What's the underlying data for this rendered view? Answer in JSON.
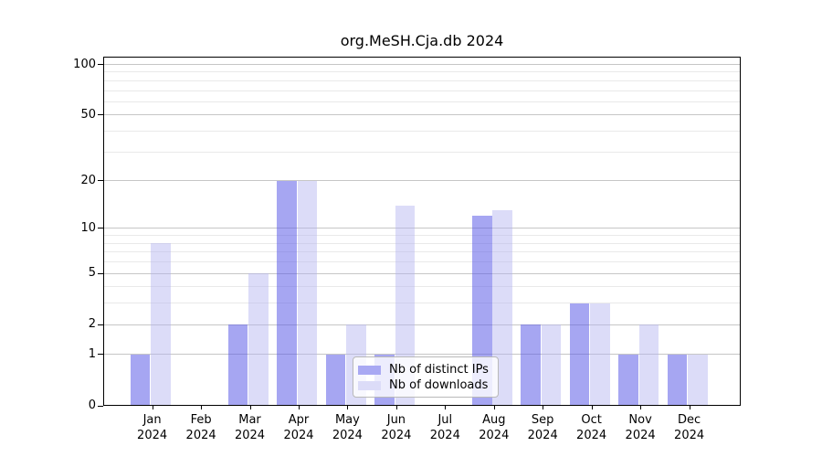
{
  "title": "org.MeSH.Cja.db 2024",
  "legend": {
    "items": [
      {
        "label": "Nb of distinct IPs",
        "series_key": "ips"
      },
      {
        "label": "Nb of downloads",
        "series_key": "downloads"
      }
    ]
  },
  "colors": {
    "bar_ips": "rgba(93,93,231,0.55)",
    "bar_downloads": "rgba(177,177,239,0.45)",
    "legend_swatch_ips": "#a9a9f3",
    "legend_swatch_downloads": "#dcdcf8",
    "grid_major": "#c6c6c6",
    "grid_minor": "#e9e9e9",
    "axis": "#000000",
    "text": "#000000"
  },
  "axes": {
    "year": "2024",
    "months": [
      "Jan",
      "Feb",
      "Mar",
      "Apr",
      "May",
      "Jun",
      "Jul",
      "Aug",
      "Sep",
      "Oct",
      "Nov",
      "Dec"
    ],
    "ytick_values": [
      0,
      1,
      2,
      5,
      10,
      20,
      50,
      100
    ],
    "minor_grid_values": [
      3,
      4,
      6,
      7,
      8,
      9,
      30,
      40,
      60,
      70,
      80,
      90
    ]
  },
  "chart_data": {
    "type": "bar",
    "title": "org.MeSH.Cja.db 2024",
    "categories": [
      "Jan 2024",
      "Feb 2024",
      "Mar 2024",
      "Apr 2024",
      "May 2024",
      "Jun 2024",
      "Jul 2024",
      "Aug 2024",
      "Sep 2024",
      "Oct 2024",
      "Nov 2024",
      "Dec 2024"
    ],
    "series": [
      {
        "name": "Nb of distinct IPs",
        "values": [
          1,
          0,
          2,
          20,
          1,
          1,
          0,
          12,
          2,
          3,
          1,
          1
        ]
      },
      {
        "name": "Nb of downloads",
        "values": [
          8,
          0,
          5,
          20,
          2,
          14,
          0,
          13,
          2,
          3,
          2,
          1
        ]
      }
    ],
    "xlabel": "",
    "ylabel": "",
    "yscale": "log10(1+y)",
    "yticks": [
      0,
      1,
      2,
      5,
      10,
      20,
      50,
      100
    ],
    "ylim": [
      0,
      110
    ],
    "grid": true,
    "legend_position": "lower center"
  }
}
